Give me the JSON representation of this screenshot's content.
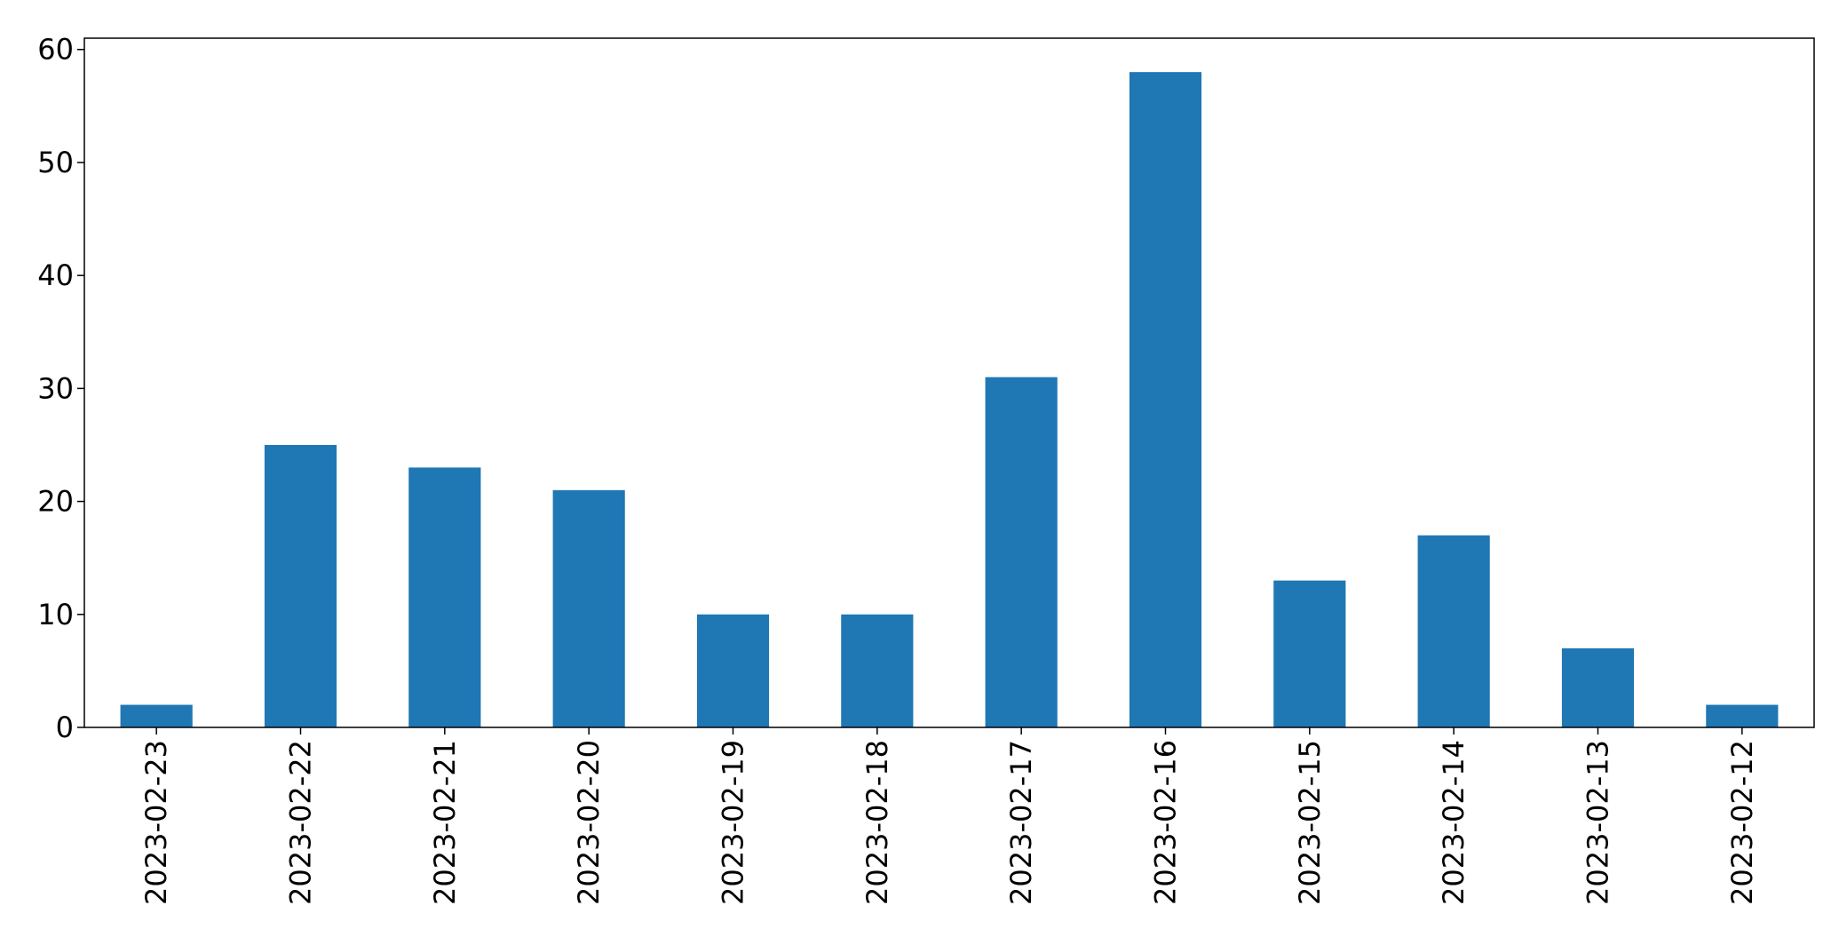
{
  "chart_data": {
    "type": "bar",
    "categories": [
      "2023-02-23",
      "2023-02-22",
      "2023-02-21",
      "2023-02-20",
      "2023-02-19",
      "2023-02-18",
      "2023-02-17",
      "2023-02-16",
      "2023-02-15",
      "2023-02-14",
      "2023-02-13",
      "2023-02-12"
    ],
    "values": [
      2,
      25,
      23,
      21,
      10,
      10,
      31,
      58,
      13,
      17,
      7,
      2
    ],
    "title": "",
    "xlabel": "",
    "ylabel": "",
    "ylim": [
      0,
      61
    ],
    "yticks": [
      0,
      10,
      20,
      30,
      40,
      50,
      60
    ],
    "grid": false,
    "legend": "none",
    "bar_color": "#1f77b4"
  }
}
